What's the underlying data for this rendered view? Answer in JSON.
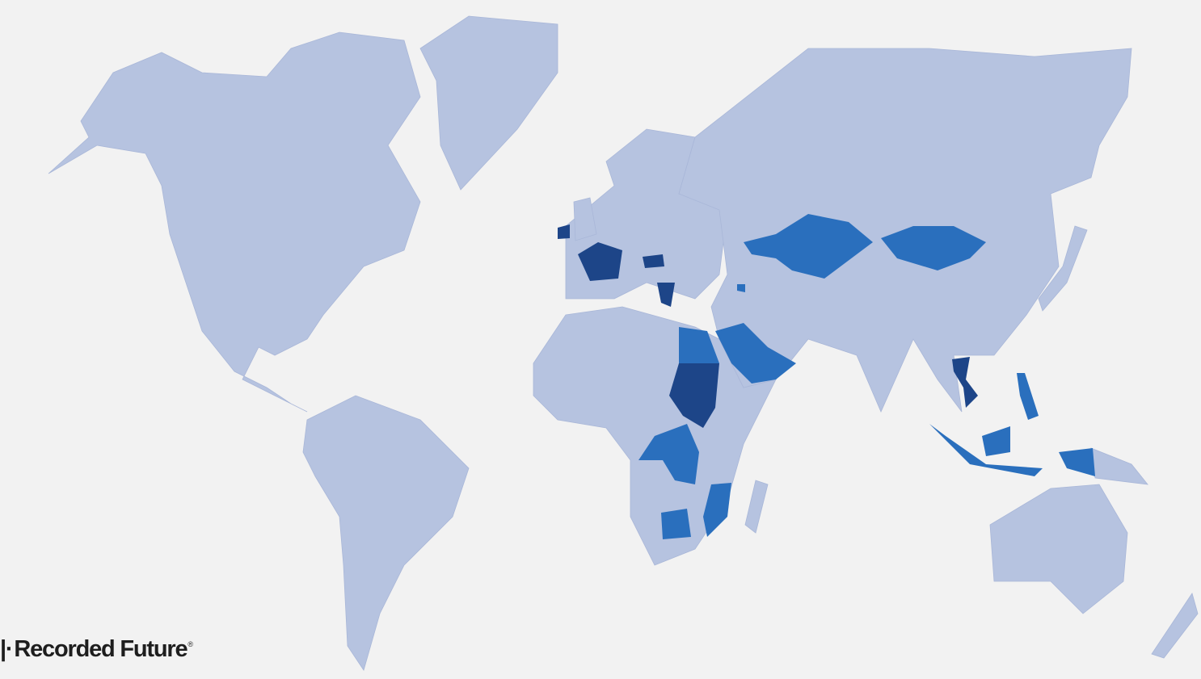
{
  "colors": {
    "background": "#f2f2f2",
    "land_default": "#b6c3e0",
    "level_medium": "#2a6fbd",
    "level_high": "#1d4588"
  },
  "logo": {
    "mark": "|·",
    "text": "Recorded Future",
    "registered": "®"
  }
}
